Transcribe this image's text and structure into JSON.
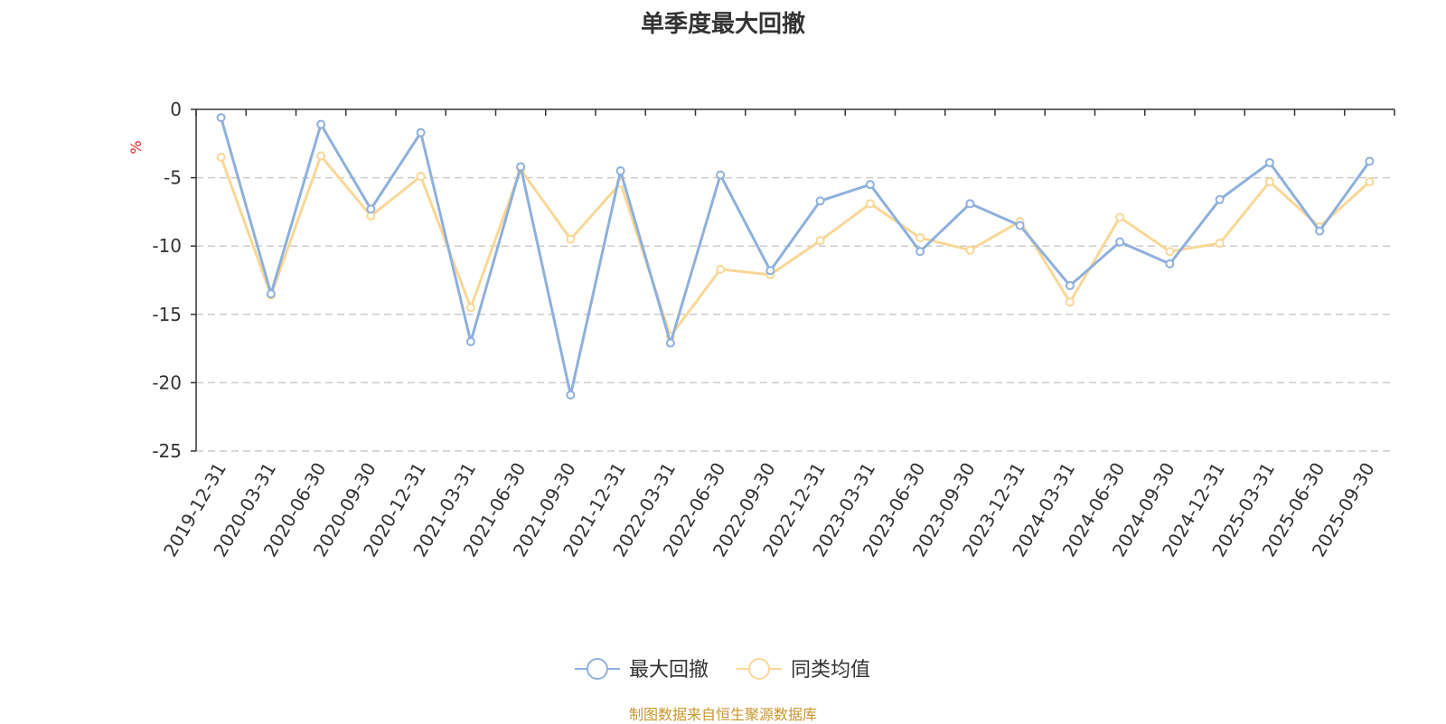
{
  "chart_data": {
    "type": "line",
    "title": "单季度最大回撤",
    "ylabel": "%",
    "xlabel": "",
    "ylim": [
      -25,
      0
    ],
    "yticks": [
      0,
      -5,
      -10,
      -15,
      -20,
      -25
    ],
    "grid": true,
    "legend_position": "bottom-center",
    "categories": [
      "2019-12-31",
      "2020-03-31",
      "2020-06-30",
      "2020-09-30",
      "2020-12-31",
      "2021-03-31",
      "2021-06-30",
      "2021-09-30",
      "2021-12-31",
      "2022-03-31",
      "2022-06-30",
      "2022-09-30",
      "2022-12-31",
      "2023-03-31",
      "2023-06-30",
      "2023-09-30",
      "2023-12-31",
      "2024-03-31",
      "2024-06-30",
      "2024-09-30",
      "2024-12-31",
      "2025-03-31",
      "2025-06-30",
      "2025-09-30"
    ],
    "series": [
      {
        "name": "最大回撤",
        "color": "#8eb0dc",
        "values": [
          -0.6,
          -13.5,
          -1.1,
          -7.3,
          -1.7,
          -17.0,
          -4.2,
          -20.9,
          -4.5,
          -17.1,
          -4.8,
          -11.8,
          -6.7,
          -5.5,
          -10.4,
          -6.9,
          -8.5,
          -12.9,
          -9.7,
          -11.3,
          -6.6,
          -3.9,
          -8.9,
          -3.8
        ]
      },
      {
        "name": "同类均值",
        "color": "#fad797",
        "values": [
          -3.5,
          -13.6,
          -3.4,
          -7.8,
          -4.9,
          -14.5,
          -4.4,
          -9.5,
          -5.4,
          -16.6,
          -11.7,
          -12.1,
          -9.6,
          -6.9,
          -9.4,
          -10.3,
          -8.2,
          -14.1,
          -7.9,
          -10.4,
          -9.8,
          -5.3,
          -8.6,
          -5.3
        ]
      }
    ],
    "source": "制图数据来自恒生聚源数据库"
  },
  "colors": {
    "axis": "#333333",
    "grid": "#cccccc",
    "ylabel": "#e02020",
    "source": "#c8962e"
  }
}
